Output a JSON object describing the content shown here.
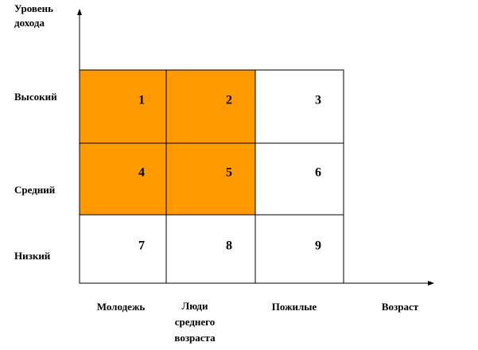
{
  "y_axis": {
    "title": [
      "Уровень",
      "дохода"
    ],
    "labels": [
      "Высокий",
      "Средний",
      "Низкий"
    ]
  },
  "x_axis": {
    "title": "Возраст",
    "labels": [
      [
        "Молодежь"
      ],
      [
        "Люди",
        "среднего",
        "возраста"
      ],
      [
        "Пожилые"
      ]
    ]
  },
  "highlight_color": "#ff9900",
  "cells": [
    [
      {
        "label": "1",
        "highlighted": true
      },
      {
        "label": "2",
        "highlighted": true
      },
      {
        "label": "3",
        "highlighted": false
      }
    ],
    [
      {
        "label": "4",
        "highlighted": true
      },
      {
        "label": "5",
        "highlighted": true
      },
      {
        "label": "6",
        "highlighted": false
      }
    ],
    [
      {
        "label": "7",
        "highlighted": false
      },
      {
        "label": "8",
        "highlighted": false
      },
      {
        "label": "9",
        "highlighted": false
      }
    ]
  ]
}
